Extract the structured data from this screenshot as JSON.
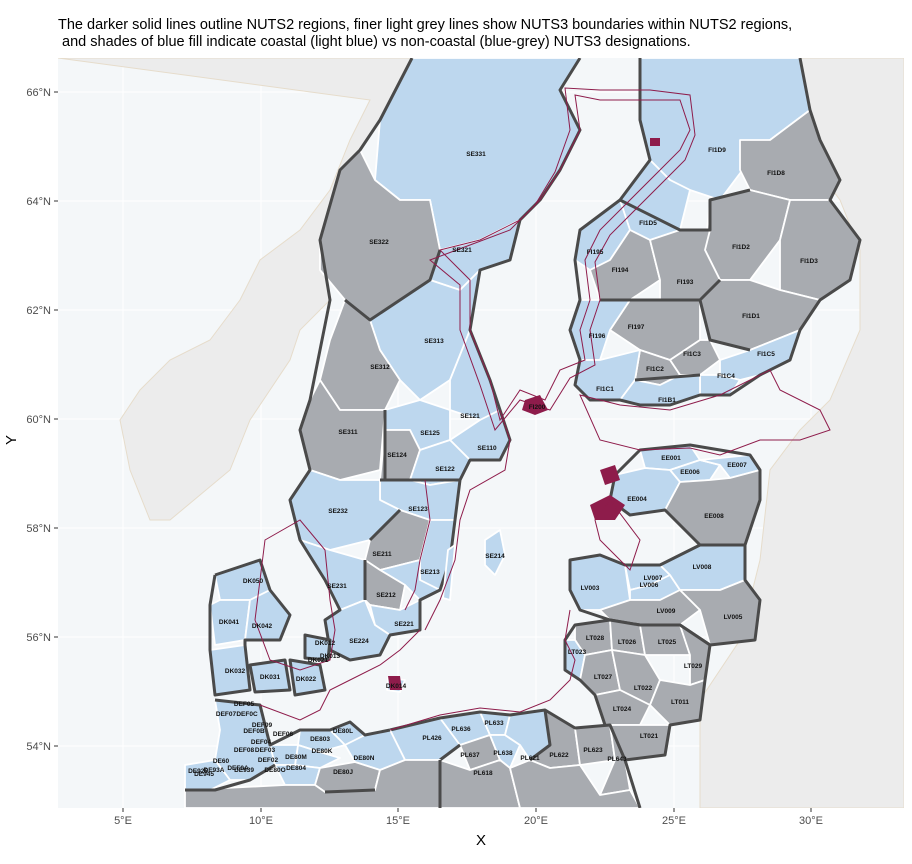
{
  "title": "The darker solid lines outline NUTS2 regions, finer light grey lines show NUTS3 boundaries within NUTS2 regions,\n and shades of blue fill indicate coastal (light blue) vs non-coastal (blue-grey) NUTS3 designations.",
  "axes": {
    "x_title": "X",
    "y_title": "Y",
    "x_ticks": [
      "5°E",
      "10°E",
      "15°E",
      "20°E",
      "25°E",
      "30°E"
    ],
    "y_ticks": [
      "66°N",
      "64°N",
      "62°N",
      "60°N",
      "58°N",
      "56°N",
      "54°N"
    ]
  },
  "legend_colors": {
    "coastal": "#bdd7ee",
    "non_coastal": "#a8abb0",
    "nuts2_outline": "#4a4a4a",
    "coastline": "#8e1c4b"
  },
  "regions": {
    "SE331": "SE331",
    "SE322": "SE322",
    "SE321": "SE321",
    "SE313": "SE313",
    "SE312": "SE312",
    "SE311": "SE311",
    "SE125": "SE125",
    "SE124": "SE124",
    "SE121": "SE121",
    "SE110": "SE110",
    "SE122": "SE122",
    "SE123": "SE123",
    "SE232": "SE232",
    "SE211": "SE211",
    "SE214": "SE214",
    "SE213": "SE213",
    "SE231": "SE231",
    "SE212": "SE212",
    "SE221": "SE221",
    "SE224": "SE224",
    "FI1D9": "FI1D9",
    "FI1D8": "FI1D8",
    "FI1D5": "FI1D5",
    "FI1D2": "FI1D2",
    "FI1D3": "FI1D3",
    "FI195": "FI195",
    "FI194": "FI194",
    "FI193": "FI193",
    "FI197": "FI197",
    "FI196": "FI196",
    "FI1D1": "FI1D1",
    "FI1C3": "FI1C3",
    "FI1C2": "FI1C2",
    "FI1C5": "FI1C5",
    "FI1C4": "FI1C4",
    "FI1C1": "FI1C1",
    "FI1B1": "FI1B1",
    "FI200": "FI200",
    "EE001": "EE001",
    "EE006": "EE006",
    "EE007": "EE007",
    "EE004": "EE004",
    "EE008": "EE008",
    "LV007": "LV007",
    "LV006": "LV006",
    "LV003": "LV003",
    "LV008": "LV008",
    "LV009": "LV009",
    "LV005": "LV005",
    "LT028": "LT028",
    "LT026": "LT026",
    "LT025": "LT025",
    "LT023": "LT023",
    "LT027": "LT027",
    "LT029": "LT029",
    "LT022": "LT022",
    "LT011": "LT011",
    "LT024": "LT024",
    "LT021": "LT021",
    "DK050": "DK050",
    "DK041": "DK041",
    "DK042": "DK042",
    "DK032": "DK032",
    "DK031": "DK031",
    "DK022": "DK022",
    "DK021": "DK021",
    "DK012": "DK012",
    "DK013": "DK013",
    "DK014": "DK014",
    "DEF05": "DEF05",
    "DEF0C": "DEF0C",
    "DEF07": "DEF07",
    "DEF06": "DEF06",
    "DEF04": "DEF04",
    "DEF0B": "DEF0B",
    "DEF09": "DEF09",
    "DEF08": "DEF08",
    "DEF03": "DEF03",
    "DEF02": "DEF02",
    "DEF0A": "DEF0A",
    "DE80L": "DE80L",
    "DE803": "DE803",
    "DE80K": "DE80K",
    "DE80M": "DE80M",
    "DE804": "DE804",
    "DE80N": "DE80N",
    "DE80J": "DE80J",
    "DE80O": "DE80O",
    "DE60": "DE60",
    "PL636": "PL636",
    "PL633": "PL633",
    "PL426": "PL426",
    "PL637": "PL637",
    "PL638": "PL638",
    "PL621": "PL621",
    "PL622": "PL622",
    "PL623": "PL623",
    "PL643": "PL643",
    "PL618": "PL618",
    "DE925": "DE925",
    "DE93A": "DE93A",
    "DE939": "DE939",
    "DE945": "DE945"
  }
}
